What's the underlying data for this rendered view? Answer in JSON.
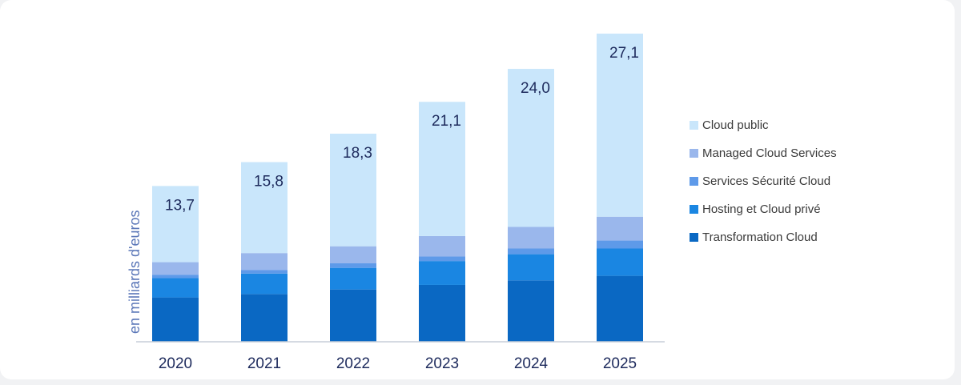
{
  "chart_data": {
    "type": "bar",
    "stacked": true,
    "categories": [
      "2020",
      "2021",
      "2022",
      "2023",
      "2024",
      "2025"
    ],
    "totals": [
      "13,7",
      "15,8",
      "18,3",
      "21,1",
      "24,0",
      "27,1"
    ],
    "ylabel": "en milliards d'euros",
    "ylim": [
      0,
      27.1
    ],
    "grid": false,
    "legend_position": "right",
    "series": [
      {
        "name": "Transformation Cloud",
        "color": "#0a68c3",
        "values": [
          3.9,
          4.2,
          4.6,
          5.0,
          5.4,
          5.8
        ]
      },
      {
        "name": "Hosting et Cloud privé",
        "color": "#1a86e2",
        "values": [
          1.7,
          1.8,
          1.9,
          2.1,
          2.3,
          2.4
        ]
      },
      {
        "name": "Services Sécurité Cloud",
        "color": "#5e9ae9",
        "values": [
          0.3,
          0.3,
          0.4,
          0.4,
          0.5,
          0.7
        ]
      },
      {
        "name": "Managed Cloud Services",
        "color": "#9ab7ec",
        "values": [
          1.1,
          1.5,
          1.5,
          1.8,
          1.9,
          2.1
        ]
      },
      {
        "name": "Cloud public",
        "color": "#c9e6fb",
        "values": [
          6.7,
          8.0,
          9.9,
          11.8,
          13.9,
          16.1
        ]
      }
    ]
  }
}
